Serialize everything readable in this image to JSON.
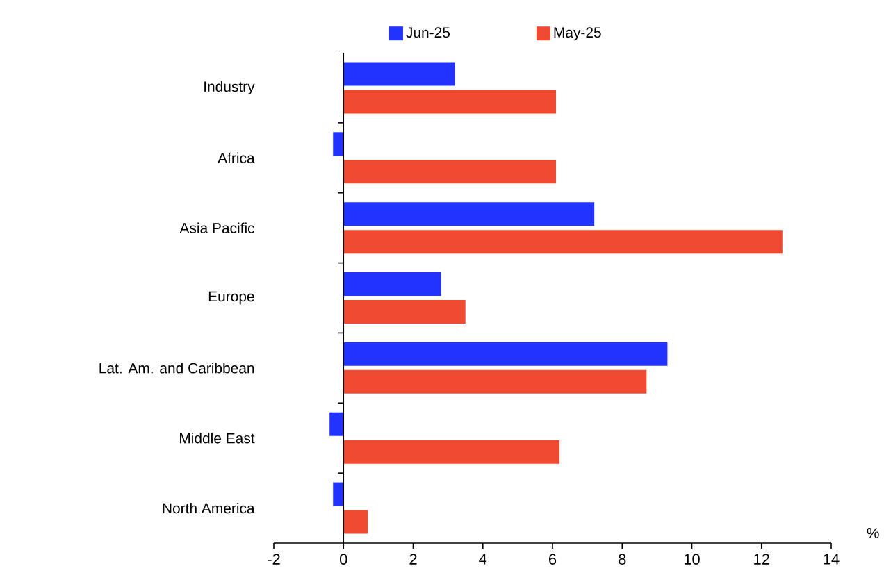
{
  "chart_data": {
    "type": "bar",
    "orientation": "horizontal",
    "xlabel": "%",
    "legend": "top",
    "grid": false,
    "categories": [
      "Industry",
      "Africa",
      "Asia Pacific",
      "Europe",
      "Lat. Am. and Caribbean",
      "Middle East",
      "North America"
    ],
    "series": [
      {
        "name": "Jun-25",
        "color": "#2233ff",
        "values": [
          3.2,
          -0.3,
          7.2,
          2.8,
          9.3,
          -0.4,
          -0.3
        ]
      },
      {
        "name": "May-25",
        "color": "#f04a33",
        "values": [
          6.1,
          6.1,
          12.6,
          3.5,
          8.7,
          6.2,
          0.7
        ]
      }
    ],
    "ref_lines": [
      {
        "axis": "x",
        "value": 0,
        "color": "#000000"
      }
    ],
    "xlim": [
      -2,
      14
    ],
    "xticks": [
      -2,
      0,
      2,
      4,
      6,
      8,
      10,
      12,
      14
    ]
  }
}
